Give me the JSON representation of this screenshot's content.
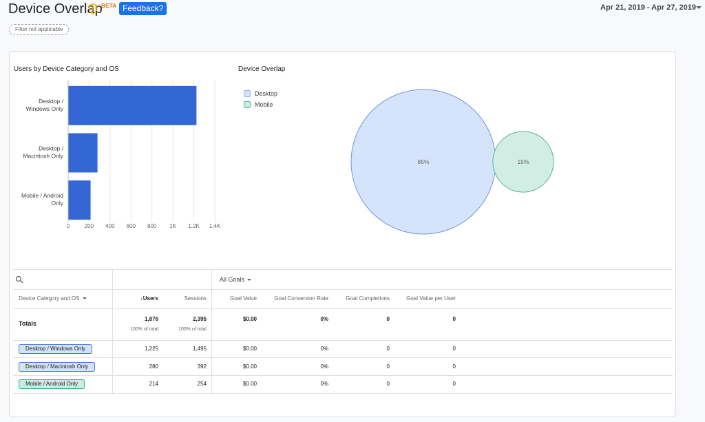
{
  "header": {
    "title": "Device Overlap",
    "beta_label": "BETA",
    "feedback_label": "Feedback?",
    "date_range": "Apr 21, 2019 - Apr 27, 2019",
    "filter_chip": "Filter not applicable"
  },
  "bar_section": {
    "title": "Users by Device Category and OS"
  },
  "venn_section": {
    "title": "Device Overlap"
  },
  "chart_data": [
    {
      "type": "bar",
      "orientation": "horizontal",
      "title": "Users by Device Category and OS",
      "categories": [
        "Desktop / Windows Only",
        "Desktop / Macintosh Only",
        "Mobile / Android Only"
      ],
      "category_lines": [
        [
          "Desktop /",
          "Windows Only"
        ],
        [
          "Desktop /",
          "Macintosh Only"
        ],
        [
          "Mobile / Android",
          "Only"
        ]
      ],
      "values": [
        1225,
        280,
        214
      ],
      "xlim": [
        0,
        1400
      ],
      "xticks": [
        0,
        200,
        400,
        600,
        800,
        1000,
        1200,
        1400
      ],
      "xtick_labels": [
        "0",
        "200",
        "400",
        "600",
        "800",
        "1K",
        "1.2K",
        "1.4K"
      ],
      "grid": true,
      "color": "#3367d6"
    },
    {
      "type": "venn",
      "title": "Device Overlap",
      "sets": [
        {
          "name": "Desktop",
          "value": 85,
          "label": "85%",
          "color": "#d6e4fb",
          "stroke": "#6f95e0"
        },
        {
          "name": "Mobile",
          "value": 15,
          "label": "15%",
          "color": "#d2ede4",
          "stroke": "#55b595"
        }
      ],
      "legend": "top-left"
    }
  ],
  "legend": [
    {
      "label": "Desktop",
      "color": "#d2e3fc",
      "border": "#8ab4f8"
    },
    {
      "label": "Mobile",
      "color": "#ccebe3",
      "border": "#5bb99a"
    }
  ],
  "table": {
    "search_icon": "search-icon",
    "goals_select": "All Goals",
    "dimension_header": "Device Category and OS",
    "columns": [
      "Users",
      "Sessions",
      "Goal Value",
      "Goal Conversion Rate",
      "Goal Completions",
      "Goal Value per User"
    ],
    "sort_indicator": "↓",
    "totals": {
      "label": "Totals",
      "values": [
        "1,876",
        "2,395",
        "$0.00",
        "0%",
        "0",
        "0"
      ],
      "pct_users": "100% of total",
      "pct_sessions": "100% of total"
    },
    "rows": [
      {
        "dimension": "Desktop / Windows Only",
        "values": [
          "1,225",
          "1,495",
          "$0.00",
          "0%",
          "0",
          "0"
        ],
        "chip": "desktop"
      },
      {
        "dimension": "Desktop / Macintosh Only",
        "values": [
          "280",
          "392",
          "$0.00",
          "0%",
          "0",
          "0"
        ],
        "chip": "desktop"
      },
      {
        "dimension": "Mobile / Android Only",
        "values": [
          "214",
          "254",
          "$0.00",
          "0%",
          "0",
          "0"
        ],
        "chip": "mobile"
      }
    ]
  }
}
